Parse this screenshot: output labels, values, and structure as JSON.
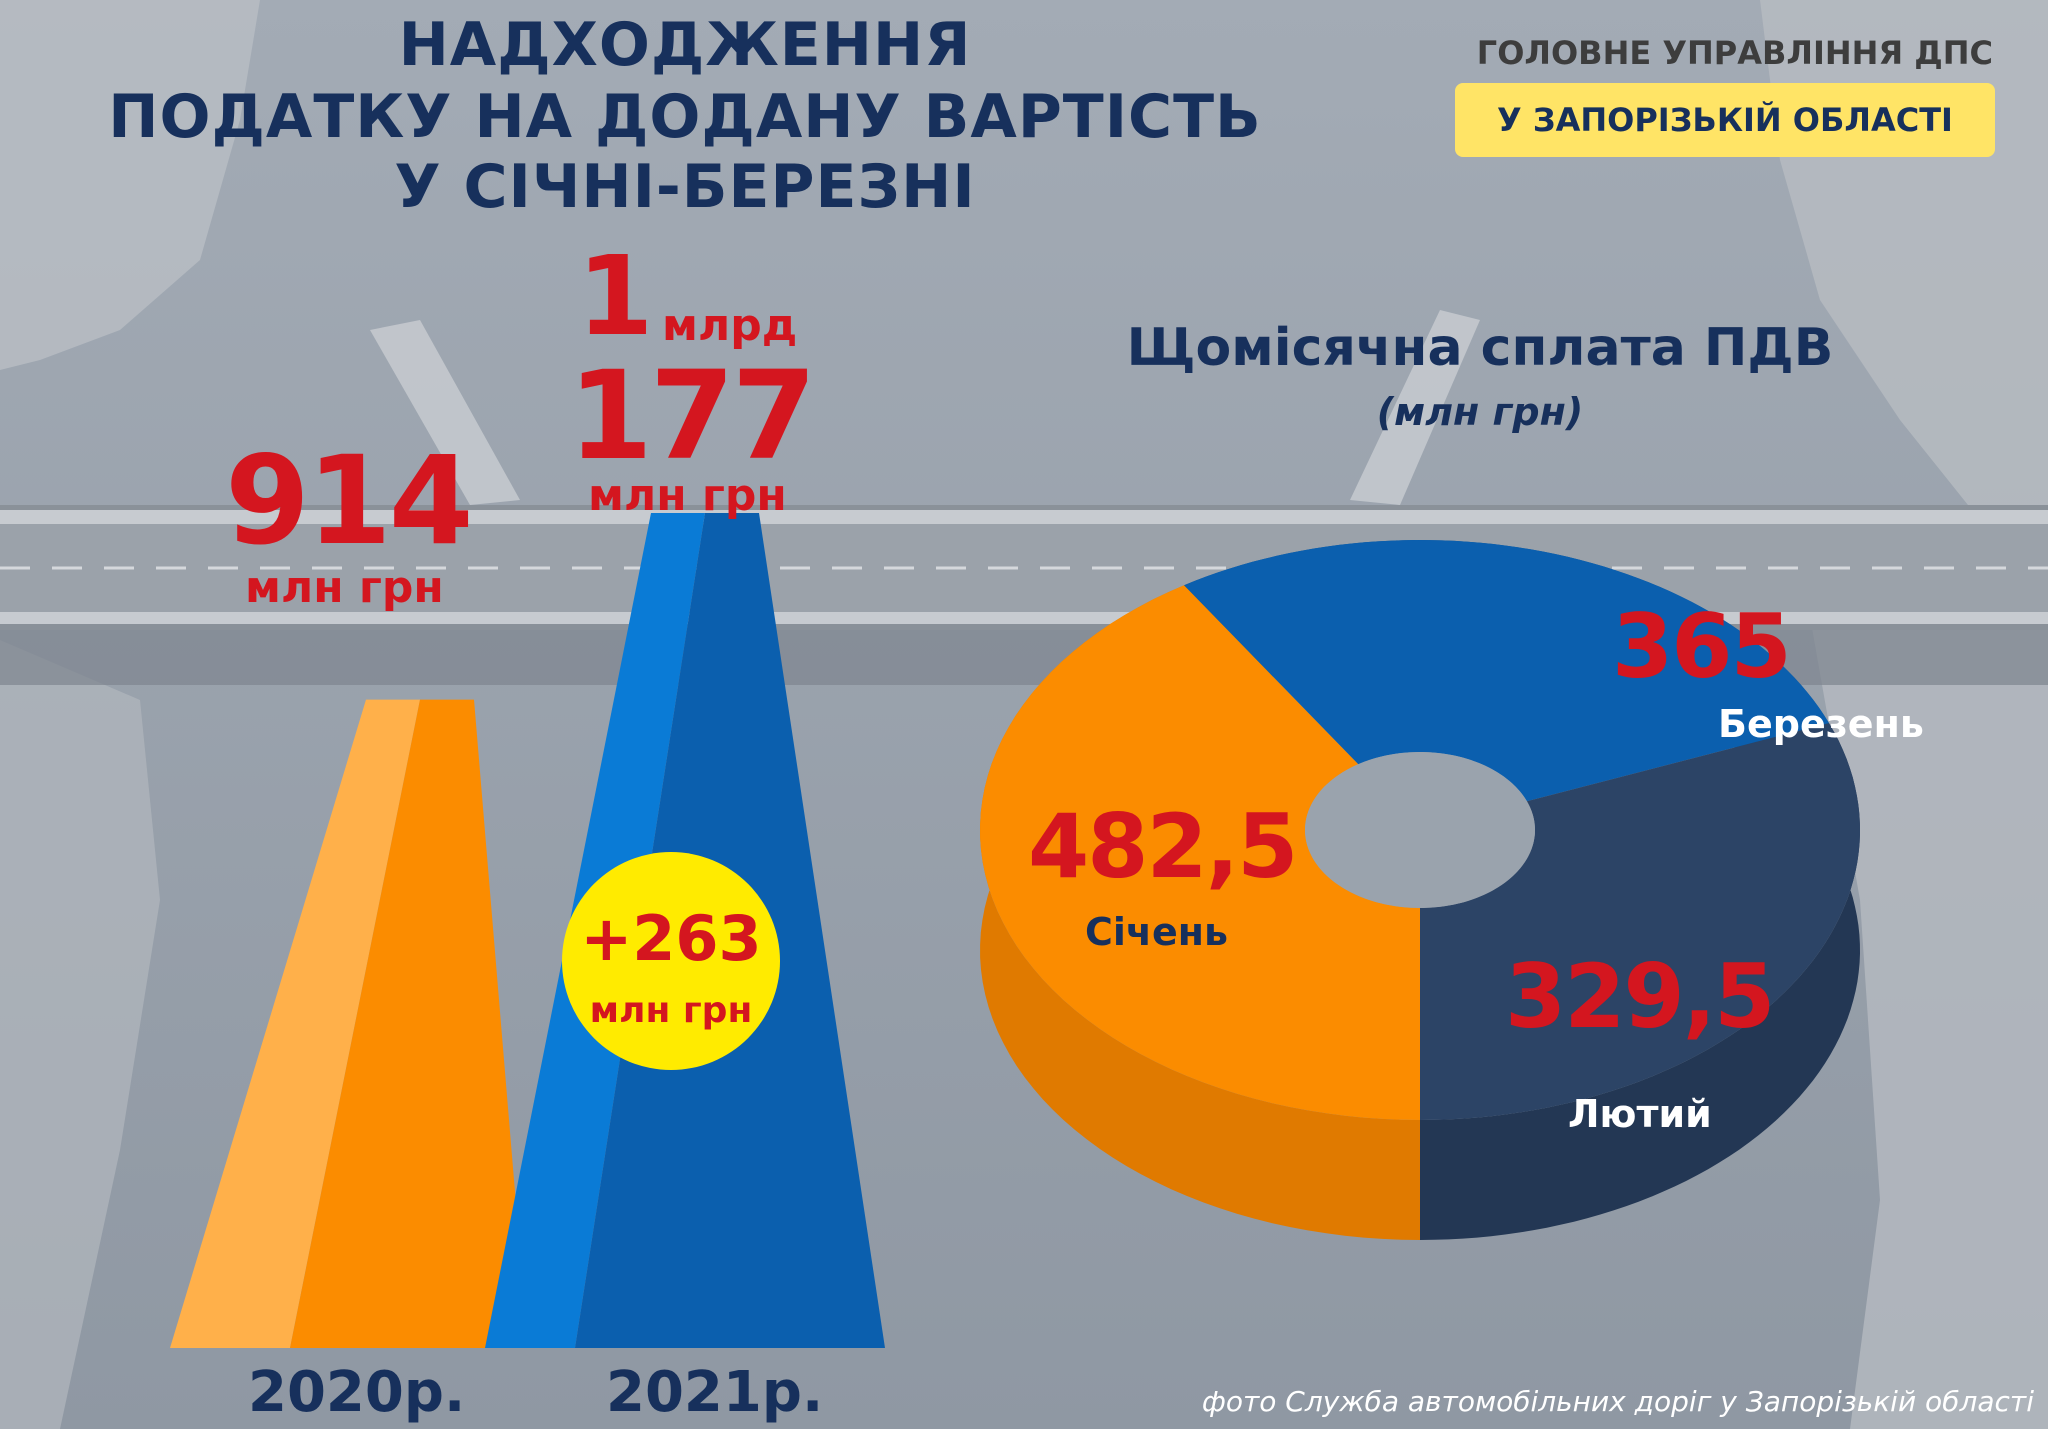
{
  "title": {
    "line1": "НАДХОДЖЕННЯ",
    "line2": "ПОДАТКУ НА ДОДАНУ ВАРТІСТЬ",
    "line3": "У СІЧНІ-БЕРЕЗНІ"
  },
  "organization": {
    "line1": "ГОЛОВНЕ УПРАВЛІННЯ ДПС",
    "line2": "У ЗАПОРІЗЬКІЙ ОБЛАСТІ"
  },
  "bar_labels": {
    "y2020_value": "914",
    "y2020_unit": "млн грн",
    "y2021_prefix": "1",
    "y2021_prefix_unit": "млрд",
    "y2021_value": "177",
    "y2021_unit": "млн грн",
    "increase_value": "+263",
    "increase_unit": "млн грн",
    "year_2020": "2020р.",
    "year_2021": "2021р."
  },
  "donut_labels": {
    "title": "Щомісячна сплата ПДВ",
    "subtitle": "(млн грн)",
    "jan_value": "482,5",
    "jan_label": "Січень",
    "feb_value": "329,5",
    "feb_label": "Лютий",
    "mar_value": "365",
    "mar_label": "Березень"
  },
  "credit": "фото Служба автомобільних доріг у Запорізькій області",
  "colors": {
    "title_navy": "#17305c",
    "value_red": "#d4161f",
    "orange": "#fb8c00",
    "orange_light": "#ffb04a",
    "blue": "#0a7bd6",
    "blue_dark": "#0b5fae",
    "navy_slice": "#2c4466",
    "yellow_badge": "#ffeb00"
  },
  "chart_data": [
    {
      "type": "bar",
      "categories": [
        "2020р.",
        "2021р."
      ],
      "values": [
        914,
        1177
      ],
      "ylabel": "млн грн",
      "annotation": "+263 млн грн"
    },
    {
      "type": "pie",
      "title": "Щомісячна сплата ПДВ",
      "subtitle": "(млн грн)",
      "categories": [
        "Січень",
        "Лютий",
        "Березень"
      ],
      "values": [
        482.5,
        329.5,
        365
      ]
    }
  ]
}
